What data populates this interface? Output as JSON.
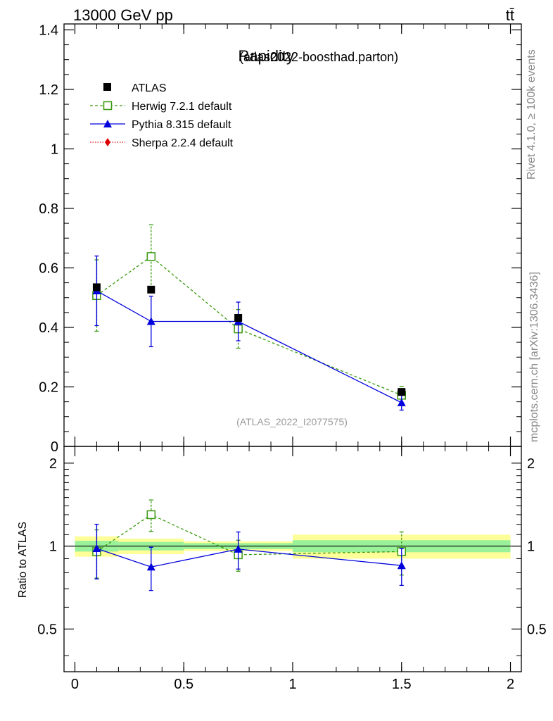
{
  "header": {
    "energy_label": "13000 GeV pp",
    "process_label": "tt̄",
    "title_main": "Rapidity",
    "title_sub": "(atlas2022-boosthad.parton)",
    "watermark": "(ATLAS_2022_I2077575)",
    "side_text_top": "Rivet 4.1.0, ≥ 100k events",
    "side_text_bottom": "mcplots.cern.ch [arXiv:1306.3436]"
  },
  "legend": [
    {
      "label": "ATLAS",
      "color": "#000000",
      "marker": "square-filled"
    },
    {
      "label": "Herwig 7.2.1 default",
      "color": "#3a9a10",
      "marker": "square-open"
    },
    {
      "label": "Pythia 8.315 default",
      "color": "#0000dd",
      "marker": "triangle-filled"
    },
    {
      "label": "Sherpa 2.2.4 default",
      "color": "#dd0000",
      "marker": "diamond-filled"
    }
  ],
  "chart_data": [
    {
      "type": "scatter",
      "panel": "main",
      "xlim": [
        -0.05,
        2.05
      ],
      "ylim": [
        0,
        1.42
      ],
      "yticks": [
        0,
        0.2,
        0.4,
        0.6,
        0.8,
        1,
        1.2,
        1.4
      ],
      "ytick_labels": [
        "0",
        "0.2",
        "0.4",
        "0.6",
        "0.8",
        "1",
        "1.2",
        "1.4"
      ],
      "series": [
        {
          "name": "ATLAS",
          "x": [
            0.1,
            0.35,
            0.75,
            1.5
          ],
          "y": [
            0.535,
            0.527,
            0.432,
            0.183
          ],
          "yerr": [
            0.01,
            0.008,
            0.008,
            0.006
          ]
        },
        {
          "name": "Herwig 7.2.1 default",
          "x": [
            0.1,
            0.35,
            0.75,
            1.5
          ],
          "y": [
            0.507,
            0.638,
            0.395,
            0.172
          ],
          "yerr": [
            0.12,
            0.107,
            0.065,
            0.03
          ]
        },
        {
          "name": "Pythia 8.315 default",
          "x": [
            0.1,
            0.35,
            0.75,
            1.5
          ],
          "y": [
            0.523,
            0.42,
            0.42,
            0.147
          ],
          "yerr": [
            0.117,
            0.085,
            0.065,
            0.025
          ]
        }
      ]
    },
    {
      "type": "scatter",
      "panel": "ratio",
      "ylabel": "Ratio to ATLAS",
      "xlim": [
        -0.05,
        2.05
      ],
      "ylim": [
        0.35,
        2.3
      ],
      "yscale": "log",
      "yticks": [
        0.5,
        1,
        2
      ],
      "ytick_labels": [
        "0.5",
        "1",
        "2"
      ],
      "xticks": [
        0,
        0.5,
        1,
        1.5,
        2
      ],
      "xtick_labels": [
        "0",
        "0.5",
        "1",
        "1.5",
        "2"
      ],
      "bins": [
        [
          0,
          0.2
        ],
        [
          0.2,
          0.5
        ],
        [
          0.5,
          1.0
        ],
        [
          1.0,
          2.0
        ]
      ],
      "band_stat": [
        [
          0.955,
          1.045
        ],
        [
          0.965,
          1.035
        ],
        [
          0.975,
          1.025
        ],
        [
          0.95,
          1.05
        ]
      ],
      "band_total": [
        [
          0.915,
          1.085
        ],
        [
          0.935,
          1.065
        ],
        [
          0.96,
          1.04
        ],
        [
          0.9,
          1.1
        ]
      ],
      "series": [
        {
          "name": "Herwig 7.2.1 default",
          "x": [
            0.1,
            0.35,
            0.75,
            1.5
          ],
          "y": [
            0.955,
            1.3,
            0.93,
            0.955
          ],
          "yerr": [
            0.19,
            0.17,
            0.12,
            0.17
          ]
        },
        {
          "name": "Pythia 8.315 default",
          "x": [
            0.1,
            0.35,
            0.75,
            1.5
          ],
          "y": [
            0.98,
            0.84,
            0.975,
            0.85
          ],
          "yerr": [
            0.22,
            0.15,
            0.15,
            0.13
          ]
        }
      ]
    }
  ]
}
